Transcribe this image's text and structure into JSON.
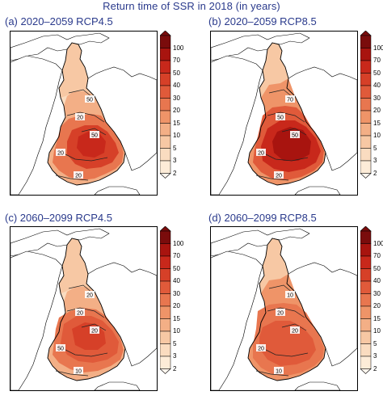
{
  "title": "Return time of SSR in 2018 (in years)",
  "panels": [
    {
      "label": "(a) 2020–2059 RCP4.5",
      "contours": [
        "50",
        "20",
        "20",
        "50",
        "20"
      ]
    },
    {
      "label": "(b) 2020–2059 RCP8.5",
      "contours": [
        "70",
        "50",
        "20",
        "50",
        "20"
      ]
    },
    {
      "label": "(c) 2060–2099 RCP4.5",
      "contours": [
        "20",
        "20",
        "50",
        "20",
        "10"
      ]
    },
    {
      "label": "(d) 2060–2099 RCP8.5",
      "contours": [
        "10",
        "20",
        "20",
        "20",
        "10"
      ]
    }
  ],
  "colorbar": {
    "levels": [
      "100",
      "70",
      "50",
      "40",
      "30",
      "20",
      "15",
      "10",
      "5",
      "3",
      "2"
    ],
    "colors": [
      "#7a0c0c",
      "#a8140f",
      "#c8281b",
      "#d64028",
      "#e05a3a",
      "#e8764f",
      "#ef9468",
      "#f3af86",
      "#f7c8a4",
      "#fadcc0",
      "#fdecd8"
    ]
  }
}
